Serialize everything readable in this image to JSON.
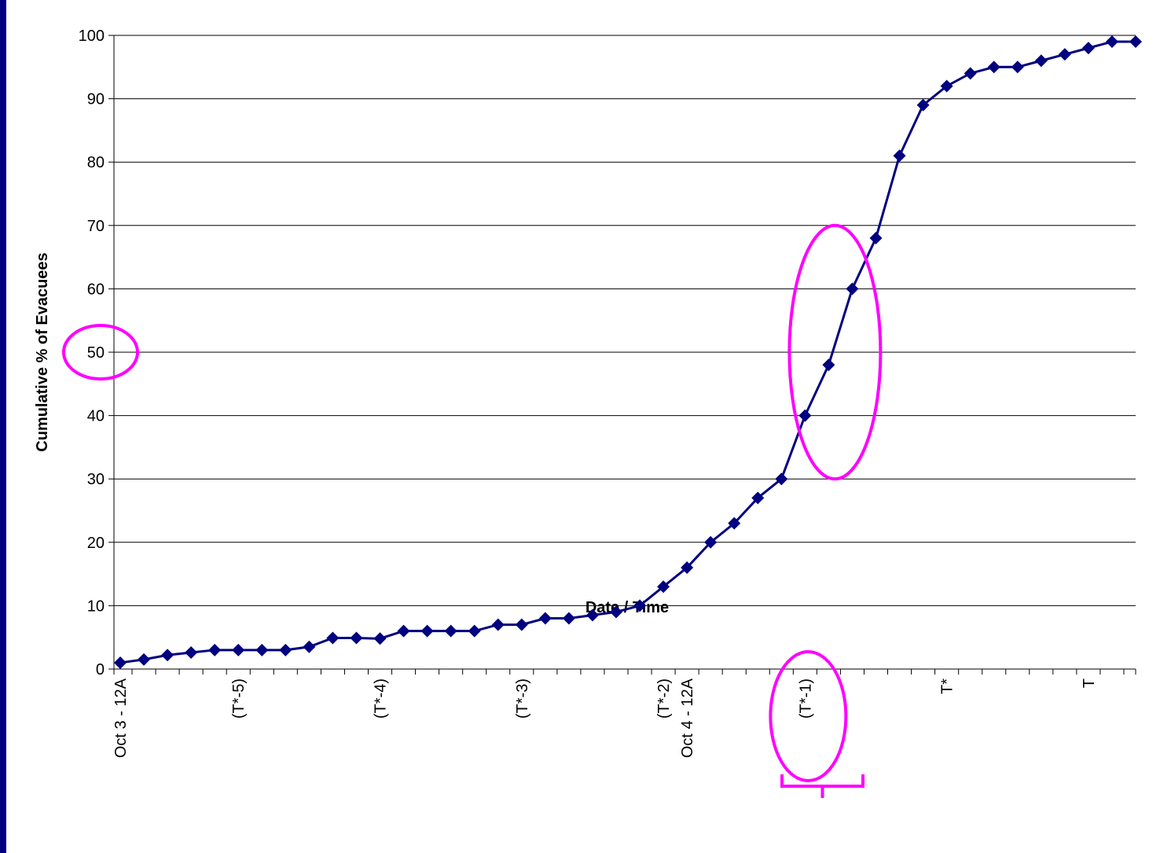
{
  "chart_data": {
    "type": "line",
    "title": "",
    "xlabel": "Date / Time",
    "ylabel": "Cumulative % of Evacuees",
    "ylim": [
      0,
      100
    ],
    "yticks": [
      0,
      10,
      20,
      30,
      40,
      50,
      60,
      70,
      80,
      90,
      100
    ],
    "grid": "horizontal",
    "legend": "none",
    "x_tick_labels": [
      {
        "index": 0,
        "label": "Oct 3 - 12A"
      },
      {
        "index": 5,
        "label": "(T*-5)"
      },
      {
        "index": 11,
        "label": "(T*-4)"
      },
      {
        "index": 17,
        "label": "(T*-3)"
      },
      {
        "index": 23,
        "label": "(T*-2)"
      },
      {
        "index": 24,
        "label": "Oct 4 - 12A"
      },
      {
        "index": 29,
        "label": "(T*-1)"
      },
      {
        "index": 35,
        "label": "T*"
      },
      {
        "index": 41,
        "label": "T"
      }
    ],
    "x_count": 44,
    "series": [
      {
        "color": "#000080",
        "marker": "diamond",
        "values": [
          1,
          1.5,
          2.2,
          2.6,
          3,
          3,
          3,
          3,
          3.5,
          4.9,
          4.9,
          4.8,
          6,
          6,
          6,
          6,
          7,
          7,
          8,
          8,
          8.5,
          9,
          10,
          13,
          16,
          20,
          23,
          27,
          30,
          40,
          48,
          60,
          68,
          81,
          89,
          92,
          94,
          95,
          95,
          96,
          97,
          98,
          99,
          99
        ]
      }
    ],
    "annotations": {
      "color": "#ff00ff",
      "highlight_y_value": 50,
      "highlight_x_label": "(T*-1)",
      "highlight_x_bracket": "(T*-1)",
      "highlight_curve_y_range": [
        30,
        70
      ]
    }
  }
}
